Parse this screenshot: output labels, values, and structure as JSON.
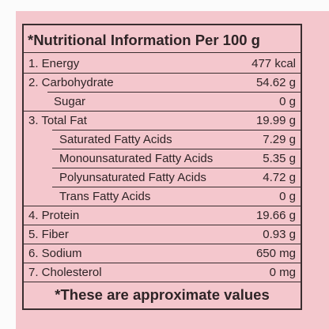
{
  "header": {
    "title": "*Nutritional Information Per 100 g"
  },
  "table": {
    "rows": [
      [
        "1. Energy",
        "477 kcal"
      ],
      [
        "2. Carbohydrate",
        "54.62 g"
      ],
      [
        "Sugar",
        "0 g"
      ],
      [
        "3. Total Fat",
        "19.99 g"
      ],
      [
        "Saturated Fatty Acids",
        "7.29 g"
      ],
      [
        "Monounsaturated Fatty Acids",
        "5.35 g"
      ],
      [
        "Polyunsaturated Fatty Acids",
        "4.72 g"
      ],
      [
        "Trans Fatty Acids",
        "0 g"
      ],
      [
        "4. Protein",
        "19.66 g"
      ],
      [
        "5. Fiber",
        "0.93 g"
      ],
      [
        "6. Sodium",
        "650 mg"
      ],
      [
        "7. Cholesterol",
        "0 mg"
      ]
    ]
  },
  "footer": {
    "note": "*These are approximate values"
  }
}
